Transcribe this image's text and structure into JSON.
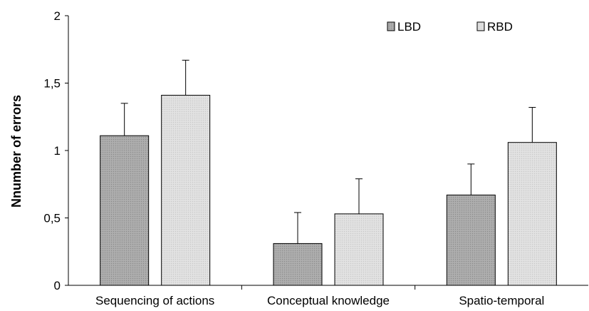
{
  "chart_data": {
    "type": "bar",
    "categories": [
      "Sequencing of actions",
      "Conceptual knowledge",
      "Spatio-temporal"
    ],
    "series": [
      {
        "name": "LBD",
        "values": [
          1.11,
          0.31,
          0.67
        ],
        "error": [
          0.24,
          0.23,
          0.23
        ]
      },
      {
        "name": "RBD",
        "values": [
          1.41,
          0.53,
          1.06
        ],
        "error": [
          0.26,
          0.26,
          0.26
        ]
      }
    ],
    "title": "",
    "xlabel": "",
    "ylabel": "Nnumber of errors",
    "ylim": [
      0,
      2
    ],
    "yticks": [
      0,
      0.5,
      1,
      1.5,
      2
    ],
    "ytick_labels": [
      "0",
      "0,5",
      "1",
      "1,5",
      "2"
    ],
    "grid": false,
    "legend_position": "top-right",
    "colors": {
      "LBD": "#a6a6a6",
      "RBD": "#dcdcdc"
    }
  }
}
